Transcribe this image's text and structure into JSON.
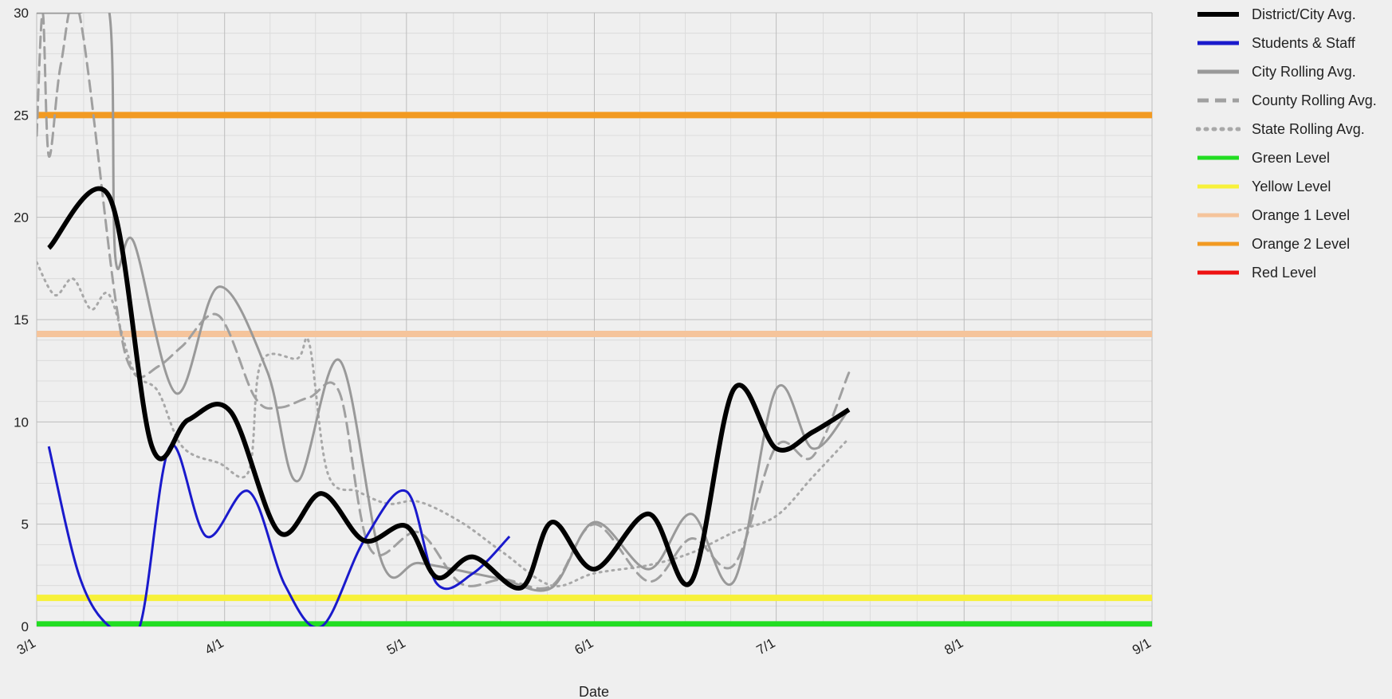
{
  "chart_data": {
    "type": "line",
    "xlabel": "Date",
    "ylabel": "",
    "x_tick_labels": [
      "3/1",
      "4/1",
      "5/1",
      "6/1",
      "7/1",
      "8/1",
      "9/1"
    ],
    "x_range": [
      "2021-03-01",
      "2021-09-01"
    ],
    "y_tick_labels": [
      "0",
      "5",
      "10",
      "15",
      "20",
      "25",
      "30"
    ],
    "ylim": [
      0,
      30
    ],
    "grid": true,
    "legend_position": "right",
    "series": [
      {
        "name": "District/City Avg.",
        "color": "#000000",
        "style": "solid-thick",
        "x": [
          "2021-03-03",
          "2021-03-13",
          "2021-03-20",
          "2021-03-26",
          "2021-04-02",
          "2021-04-10",
          "2021-04-17",
          "2021-04-24",
          "2021-05-01",
          "2021-05-06",
          "2021-05-12",
          "2021-05-20",
          "2021-05-25",
          "2021-06-01",
          "2021-06-10",
          "2021-06-17",
          "2021-06-24",
          "2021-07-01",
          "2021-07-07",
          "2021-07-13"
        ],
        "values": [
          18.5,
          21.0,
          8.8,
          10.1,
          10.5,
          4.6,
          6.5,
          4.2,
          4.9,
          2.4,
          3.4,
          1.9,
          5.1,
          2.8,
          5.5,
          2.2,
          11.6,
          8.7,
          9.5,
          10.6
        ]
      },
      {
        "name": "Students & Staff",
        "color": "#1a1acc",
        "style": "solid",
        "x": [
          "2021-03-03",
          "2021-03-08",
          "2021-03-13",
          "2021-03-18",
          "2021-03-23",
          "2021-03-29",
          "2021-04-05",
          "2021-04-11",
          "2021-04-17",
          "2021-04-24",
          "2021-05-01",
          "2021-05-06",
          "2021-05-12",
          "2021-05-18"
        ],
        "values": [
          8.8,
          2.5,
          0,
          0,
          8.8,
          4.4,
          6.6,
          2.0,
          0,
          4.2,
          6.6,
          2.1,
          2.6,
          4.4
        ]
      },
      {
        "name": "City Rolling Avg.",
        "color": "#999999",
        "style": "solid",
        "x": [
          "2021-03-01",
          "2021-03-08",
          "2021-03-13",
          "2021-03-14",
          "2021-03-17",
          "2021-03-24",
          "2021-03-31",
          "2021-04-08",
          "2021-04-13",
          "2021-04-20",
          "2021-04-27",
          "2021-05-03",
          "2021-05-12",
          "2021-05-17",
          "2021-05-25",
          "2021-06-01",
          "2021-06-10",
          "2021-06-17",
          "2021-06-24",
          "2021-07-01",
          "2021-07-07",
          "2021-07-13"
        ],
        "values": [
          30,
          30,
          30,
          18.0,
          18.8,
          11.4,
          16.6,
          12.5,
          7.1,
          13.0,
          3.1,
          3.1,
          2.6,
          2.3,
          1.9,
          5.1,
          2.8,
          5.5,
          2.2,
          11.6,
          8.7,
          10.6
        ]
      },
      {
        "name": "County Rolling Avg.",
        "color": "#a0a0a0",
        "style": "dashed",
        "x": [
          "2021-03-01",
          "2021-03-02",
          "2021-03-03",
          "2021-03-05",
          "2021-03-08",
          "2021-03-14",
          "2021-03-17",
          "2021-03-21",
          "2021-03-25",
          "2021-03-31",
          "2021-04-06",
          "2021-04-10",
          "2021-04-15",
          "2021-04-20",
          "2021-04-25",
          "2021-05-03",
          "2021-05-10",
          "2021-05-17",
          "2021-05-25",
          "2021-06-01",
          "2021-06-10",
          "2021-06-17",
          "2021-06-24",
          "2021-07-01",
          "2021-07-07",
          "2021-07-13"
        ],
        "values": [
          24.0,
          30,
          23.0,
          27.5,
          30,
          16.0,
          12.4,
          12.7,
          13.7,
          15.2,
          11.2,
          10.7,
          11.2,
          11.4,
          3.8,
          4.6,
          2.1,
          2.3,
          2.0,
          5.0,
          2.2,
          4.3,
          3.0,
          8.8,
          8.3,
          12.4
        ]
      },
      {
        "name": "State Rolling Avg.",
        "color": "#a8a8a8",
        "style": "dotted",
        "x": [
          "2021-03-01",
          "2021-03-04",
          "2021-03-07",
          "2021-03-10",
          "2021-03-13",
          "2021-03-17",
          "2021-03-21",
          "2021-03-25",
          "2021-03-31",
          "2021-04-05",
          "2021-04-07",
          "2021-04-13",
          "2021-04-15",
          "2021-04-18",
          "2021-04-23",
          "2021-04-28",
          "2021-05-03",
          "2021-05-10",
          "2021-05-17",
          "2021-05-25",
          "2021-06-01",
          "2021-06-10",
          "2021-06-17",
          "2021-06-24",
          "2021-07-01",
          "2021-07-07",
          "2021-07-13"
        ],
        "values": [
          17.8,
          16.2,
          17.0,
          15.5,
          16.2,
          12.5,
          11.5,
          8.8,
          8.0,
          7.6,
          12.9,
          13.1,
          13.8,
          7.5,
          6.6,
          6.0,
          6.1,
          5.1,
          3.6,
          2.0,
          2.6,
          3.0,
          3.6,
          4.6,
          5.4,
          7.3,
          9.2
        ]
      }
    ],
    "reference_lines": [
      {
        "name": "Green Level",
        "color": "#22dd22",
        "value": 0.1
      },
      {
        "name": "Yellow Level",
        "color": "#f7f13a",
        "value": 1.4
      },
      {
        "name": "Orange 1 Level",
        "color": "#f5c49b",
        "value": 14.3
      },
      {
        "name": "Orange 2 Level",
        "color": "#f29a22",
        "value": 25.0
      },
      {
        "name": "Red Level",
        "color": "#ee1111",
        "value": null
      }
    ]
  }
}
